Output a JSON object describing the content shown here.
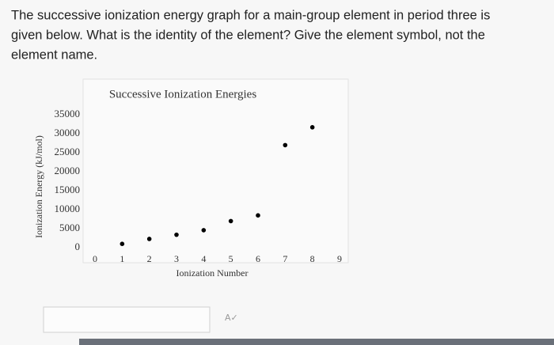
{
  "question_lines": [
    "The successive ionization energy graph for a main-group element in period three is",
    "given below. What is the identity of the element? Give the element symbol, not the",
    "element name."
  ],
  "chart_data": {
    "type": "scatter",
    "title": "Successive Ionization Energies",
    "x_label": "Ionization Number",
    "y_label": "Ionization Energy (kJ/mol)",
    "x": [
      1,
      2,
      3,
      4,
      5,
      6,
      7,
      8
    ],
    "values": [
      1000,
      2300,
      3400,
      4600,
      7000,
      8500,
      27000,
      31700
    ],
    "color": "#000000",
    "xlim": [
      0,
      9
    ],
    "xticks": [
      0,
      1,
      2,
      3,
      4,
      5,
      6,
      7,
      8,
      9
    ],
    "ylim": [
      0,
      35000
    ],
    "yticks": [
      0,
      5000,
      10000,
      15000,
      20000,
      25000,
      30000,
      35000
    ],
    "grid": false
  }
}
